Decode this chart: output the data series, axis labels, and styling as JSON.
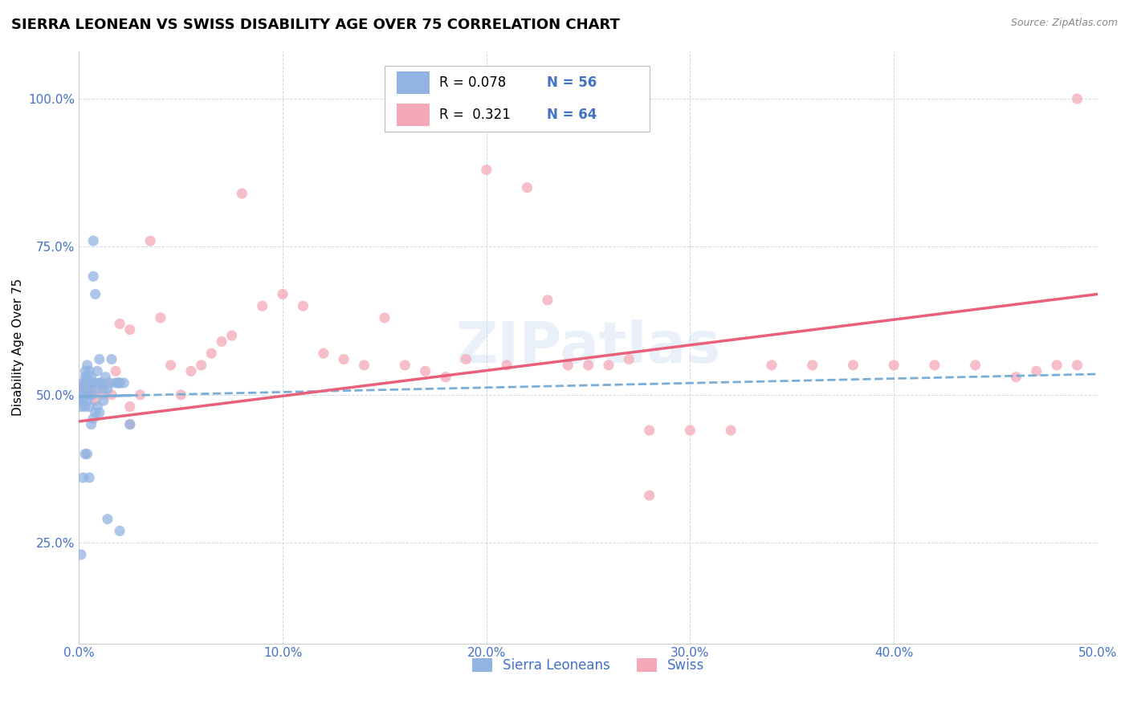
{
  "title": "SIERRA LEONEAN VS SWISS DISABILITY AGE OVER 75 CORRELATION CHART",
  "source": "Source: ZipAtlas.com",
  "ylabel": "Disability Age Over 75",
  "xlim": [
    0.0,
    0.5
  ],
  "ylim": [
    0.08,
    1.08
  ],
  "xticks": [
    0.0,
    0.1,
    0.2,
    0.3,
    0.4,
    0.5
  ],
  "xticklabels": [
    "0.0%",
    "10.0%",
    "20.0%",
    "30.0%",
    "40.0%",
    "50.0%"
  ],
  "yticks": [
    0.25,
    0.5,
    0.75,
    1.0
  ],
  "yticklabels": [
    "25.0%",
    "50.0%",
    "75.0%",
    "100.0%"
  ],
  "color_sl": "#92b4e3",
  "color_swiss": "#f4a8b8",
  "color_sl_line": "#7aaed6",
  "color_swiss_line": "#e8607a",
  "color_blue_text": "#4472c4",
  "watermark": "ZIPatlas",
  "sl_x": [
    0.001,
    0.001,
    0.001,
    0.002,
    0.002,
    0.002,
    0.002,
    0.003,
    0.003,
    0.003,
    0.003,
    0.003,
    0.004,
    0.004,
    0.004,
    0.004,
    0.005,
    0.005,
    0.005,
    0.005,
    0.006,
    0.006,
    0.006,
    0.007,
    0.007,
    0.007,
    0.008,
    0.008,
    0.009,
    0.009,
    0.01,
    0.01,
    0.011,
    0.012,
    0.013,
    0.014,
    0.015,
    0.016,
    0.018,
    0.019,
    0.02,
    0.022,
    0.001,
    0.002,
    0.003,
    0.004,
    0.005,
    0.006,
    0.007,
    0.008,
    0.009,
    0.01,
    0.012,
    0.014,
    0.02,
    0.025
  ],
  "sl_y": [
    0.5,
    0.49,
    0.48,
    0.52,
    0.51,
    0.5,
    0.49,
    0.54,
    0.53,
    0.52,
    0.51,
    0.48,
    0.55,
    0.53,
    0.51,
    0.49,
    0.54,
    0.52,
    0.5,
    0.48,
    0.53,
    0.52,
    0.5,
    0.76,
    0.7,
    0.52,
    0.67,
    0.52,
    0.54,
    0.51,
    0.56,
    0.52,
    0.52,
    0.51,
    0.53,
    0.51,
    0.52,
    0.56,
    0.52,
    0.52,
    0.52,
    0.52,
    0.23,
    0.36,
    0.4,
    0.4,
    0.36,
    0.45,
    0.46,
    0.47,
    0.48,
    0.47,
    0.49,
    0.29,
    0.27,
    0.45
  ],
  "swiss_x": [
    0.001,
    0.002,
    0.003,
    0.004,
    0.005,
    0.006,
    0.007,
    0.008,
    0.009,
    0.01,
    0.012,
    0.014,
    0.016,
    0.018,
    0.02,
    0.025,
    0.03,
    0.035,
    0.04,
    0.045,
    0.05,
    0.055,
    0.06,
    0.065,
    0.07,
    0.075,
    0.08,
    0.09,
    0.1,
    0.11,
    0.12,
    0.13,
    0.14,
    0.15,
    0.16,
    0.17,
    0.18,
    0.19,
    0.2,
    0.21,
    0.22,
    0.23,
    0.24,
    0.25,
    0.26,
    0.27,
    0.28,
    0.3,
    0.32,
    0.34,
    0.36,
    0.38,
    0.4,
    0.42,
    0.44,
    0.46,
    0.47,
    0.48,
    0.49,
    0.02,
    0.025,
    0.025,
    0.28,
    0.49
  ],
  "swiss_y": [
    0.49,
    0.51,
    0.52,
    0.5,
    0.51,
    0.52,
    0.5,
    0.49,
    0.51,
    0.52,
    0.5,
    0.52,
    0.5,
    0.54,
    0.52,
    0.48,
    0.5,
    0.76,
    0.63,
    0.55,
    0.5,
    0.54,
    0.55,
    0.57,
    0.59,
    0.6,
    0.84,
    0.65,
    0.67,
    0.65,
    0.57,
    0.56,
    0.55,
    0.63,
    0.55,
    0.54,
    0.53,
    0.56,
    0.88,
    0.55,
    0.85,
    0.66,
    0.55,
    0.55,
    0.55,
    0.56,
    0.44,
    0.44,
    0.44,
    0.55,
    0.55,
    0.55,
    0.55,
    0.55,
    0.55,
    0.53,
    0.54,
    0.55,
    0.55,
    0.62,
    0.61,
    0.45,
    0.33,
    1.0
  ]
}
